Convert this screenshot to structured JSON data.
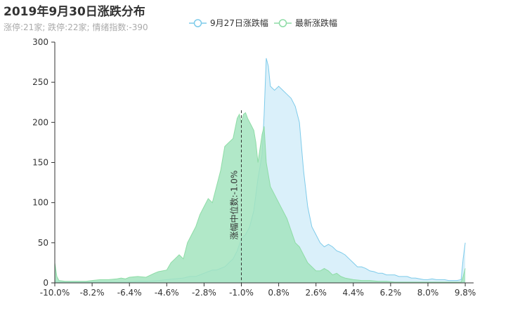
{
  "header": {
    "title": "2019年9月30日涨跌分布",
    "subtitle": "涨停:21家; 跌停:22家; 情绪指数:-390"
  },
  "chart_data": {
    "type": "area",
    "title": "2019年9月30日涨跌分布",
    "subtitle": "涨停:21家; 跌停:22家; 情绪指数:-390",
    "xlabel": "",
    "ylabel": "",
    "xlim": [
      -10.0,
      10.0
    ],
    "ylim": [
      0,
      300
    ],
    "x_ticks": [
      "-10.0%",
      "-8.2%",
      "-6.4%",
      "-4.6%",
      "-2.8%",
      "-1.0%",
      "0.8%",
      "2.6%",
      "4.4%",
      "6.2%",
      "8.0%",
      "9.8%"
    ],
    "x_tick_values": [
      -10.0,
      -8.2,
      -6.4,
      -4.6,
      -2.8,
      -1.0,
      0.8,
      2.6,
      4.4,
      6.2,
      8.0,
      9.8
    ],
    "y_ticks": [
      0,
      50,
      100,
      150,
      200,
      250,
      300
    ],
    "legend_position": "top-center",
    "grid": false,
    "median": {
      "value": -1.0,
      "label": "涨幅中位数:-1.0%"
    },
    "series": [
      {
        "name": "9月27日涨跌幅",
        "line_color": "#7ecbea",
        "fill_color": "#d6eef9",
        "points": [
          [
            -10.0,
            3
          ],
          [
            -9.9,
            1
          ],
          [
            -9.5,
            1
          ],
          [
            -9.0,
            1
          ],
          [
            -8.5,
            1
          ],
          [
            -8.0,
            1
          ],
          [
            -7.5,
            1
          ],
          [
            -7.0,
            1
          ],
          [
            -6.5,
            1
          ],
          [
            -6.0,
            2
          ],
          [
            -5.5,
            2
          ],
          [
            -5.0,
            3
          ],
          [
            -4.6,
            4
          ],
          [
            -4.2,
            5
          ],
          [
            -3.8,
            6
          ],
          [
            -3.5,
            8
          ],
          [
            -3.2,
            8
          ],
          [
            -3.0,
            10
          ],
          [
            -2.8,
            12
          ],
          [
            -2.6,
            14
          ],
          [
            -2.4,
            16
          ],
          [
            -2.2,
            16
          ],
          [
            -2.0,
            18
          ],
          [
            -1.8,
            20
          ],
          [
            -1.6,
            25
          ],
          [
            -1.4,
            30
          ],
          [
            -1.2,
            40
          ],
          [
            -1.0,
            55
          ],
          [
            -0.8,
            60
          ],
          [
            -0.6,
            70
          ],
          [
            -0.4,
            90
          ],
          [
            -0.2,
            130
          ],
          [
            0.0,
            160
          ],
          [
            0.1,
            210
          ],
          [
            0.2,
            280
          ],
          [
            0.3,
            270
          ],
          [
            0.4,
            245
          ],
          [
            0.6,
            240
          ],
          [
            0.8,
            245
          ],
          [
            1.0,
            240
          ],
          [
            1.2,
            235
          ],
          [
            1.4,
            230
          ],
          [
            1.6,
            220
          ],
          [
            1.8,
            200
          ],
          [
            2.0,
            140
          ],
          [
            2.2,
            95
          ],
          [
            2.4,
            70
          ],
          [
            2.6,
            60
          ],
          [
            2.8,
            50
          ],
          [
            3.0,
            45
          ],
          [
            3.2,
            48
          ],
          [
            3.4,
            45
          ],
          [
            3.6,
            40
          ],
          [
            3.8,
            38
          ],
          [
            4.0,
            35
          ],
          [
            4.2,
            30
          ],
          [
            4.4,
            25
          ],
          [
            4.6,
            20
          ],
          [
            4.8,
            20
          ],
          [
            5.0,
            18
          ],
          [
            5.2,
            15
          ],
          [
            5.4,
            14
          ],
          [
            5.6,
            12
          ],
          [
            5.8,
            12
          ],
          [
            6.0,
            10
          ],
          [
            6.2,
            10
          ],
          [
            6.4,
            10
          ],
          [
            6.6,
            8
          ],
          [
            6.8,
            8
          ],
          [
            7.0,
            8
          ],
          [
            7.2,
            6
          ],
          [
            7.4,
            6
          ],
          [
            7.6,
            5
          ],
          [
            7.8,
            4
          ],
          [
            8.0,
            4
          ],
          [
            8.2,
            5
          ],
          [
            8.4,
            4
          ],
          [
            8.6,
            4
          ],
          [
            8.8,
            4
          ],
          [
            9.0,
            3
          ],
          [
            9.2,
            3
          ],
          [
            9.4,
            3
          ],
          [
            9.6,
            4
          ],
          [
            9.7,
            30
          ],
          [
            9.8,
            50
          ]
        ]
      },
      {
        "name": "最新涨跌幅",
        "line_color": "#8edca6",
        "fill_color": "#a3e4be",
        "points": [
          [
            -10.0,
            25
          ],
          [
            -9.9,
            8
          ],
          [
            -9.8,
            3
          ],
          [
            -9.5,
            2
          ],
          [
            -9.0,
            2
          ],
          [
            -8.5,
            2
          ],
          [
            -8.2,
            3
          ],
          [
            -7.8,
            4
          ],
          [
            -7.4,
            4
          ],
          [
            -7.0,
            5
          ],
          [
            -6.8,
            6
          ],
          [
            -6.6,
            5
          ],
          [
            -6.4,
            7
          ],
          [
            -6.0,
            8
          ],
          [
            -5.6,
            7
          ],
          [
            -5.2,
            12
          ],
          [
            -5.0,
            14
          ],
          [
            -4.8,
            15
          ],
          [
            -4.6,
            16
          ],
          [
            -4.4,
            25
          ],
          [
            -4.2,
            30
          ],
          [
            -4.0,
            35
          ],
          [
            -3.8,
            30
          ],
          [
            -3.6,
            50
          ],
          [
            -3.4,
            60
          ],
          [
            -3.2,
            70
          ],
          [
            -3.0,
            85
          ],
          [
            -2.8,
            95
          ],
          [
            -2.6,
            105
          ],
          [
            -2.4,
            100
          ],
          [
            -2.2,
            120
          ],
          [
            -2.0,
            140
          ],
          [
            -1.8,
            170
          ],
          [
            -1.6,
            175
          ],
          [
            -1.4,
            180
          ],
          [
            -1.2,
            205
          ],
          [
            -1.1,
            210
          ],
          [
            -1.0,
            200
          ],
          [
            -0.9,
            210
          ],
          [
            -0.8,
            212
          ],
          [
            -0.7,
            205
          ],
          [
            -0.5,
            195
          ],
          [
            -0.4,
            190
          ],
          [
            -0.3,
            175
          ],
          [
            -0.2,
            150
          ],
          [
            0.0,
            185
          ],
          [
            0.1,
            195
          ],
          [
            0.2,
            150
          ],
          [
            0.4,
            120
          ],
          [
            0.6,
            110
          ],
          [
            0.8,
            100
          ],
          [
            1.0,
            90
          ],
          [
            1.2,
            80
          ],
          [
            1.4,
            65
          ],
          [
            1.6,
            50
          ],
          [
            1.8,
            45
          ],
          [
            2.0,
            35
          ],
          [
            2.2,
            25
          ],
          [
            2.4,
            20
          ],
          [
            2.6,
            15
          ],
          [
            2.8,
            15
          ],
          [
            3.0,
            18
          ],
          [
            3.2,
            15
          ],
          [
            3.4,
            10
          ],
          [
            3.6,
            12
          ],
          [
            3.8,
            8
          ],
          [
            4.0,
            6
          ],
          [
            4.4,
            4
          ],
          [
            4.8,
            3
          ],
          [
            5.2,
            3
          ],
          [
            5.6,
            2
          ],
          [
            6.0,
            2
          ],
          [
            6.4,
            1
          ],
          [
            6.8,
            1
          ],
          [
            7.2,
            1
          ],
          [
            7.6,
            1
          ],
          [
            8.0,
            1
          ],
          [
            8.4,
            1
          ],
          [
            8.8,
            1
          ],
          [
            9.2,
            1
          ],
          [
            9.6,
            1
          ],
          [
            9.7,
            8
          ],
          [
            9.8,
            18
          ]
        ]
      }
    ]
  }
}
